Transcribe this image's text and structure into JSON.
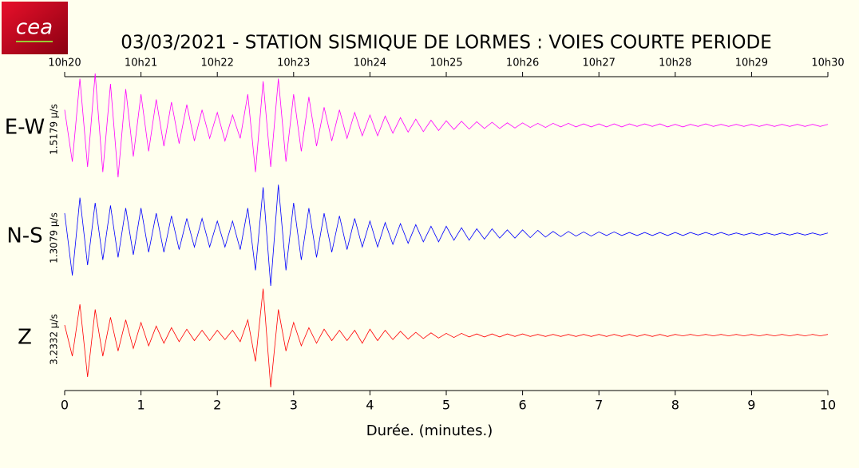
{
  "logo": {
    "text": "cea"
  },
  "chart_data": {
    "type": "line",
    "title": "03/03/2021  -  STATION SISMIQUE DE LORMES : VOIES COURTE PERIODE",
    "x_label": "Durée.  (minutes.)",
    "xlim": [
      0,
      10
    ],
    "xticks": [
      0,
      1,
      2,
      3,
      4,
      5,
      6,
      7,
      8,
      9,
      10
    ],
    "top_xticks": [
      {
        "value": 0,
        "label": "10h20"
      },
      {
        "value": 1,
        "label": "10h21"
      },
      {
        "value": 2,
        "label": "10h22"
      },
      {
        "value": 3,
        "label": "10h23"
      },
      {
        "value": 4,
        "label": "10h24"
      },
      {
        "value": 5,
        "label": "10h25"
      },
      {
        "value": 6,
        "label": "10h26"
      },
      {
        "value": 7,
        "label": "10h27"
      },
      {
        "value": 8,
        "label": "10h28"
      },
      {
        "value": 9,
        "label": "10h29"
      },
      {
        "value": 10,
        "label": "10h30"
      }
    ],
    "ylim": [
      -1,
      1
    ],
    "x": [
      0,
      0.1,
      0.2,
      0.3,
      0.4,
      0.5,
      0.6,
      0.7,
      0.8,
      0.9,
      1,
      1.1,
      1.2,
      1.3,
      1.4,
      1.5,
      1.6,
      1.7,
      1.8,
      1.9,
      2,
      2.1,
      2.2,
      2.3,
      2.4,
      2.5,
      2.6,
      2.7,
      2.8,
      2.9,
      3,
      3.1,
      3.2,
      3.3,
      3.4,
      3.5,
      3.6,
      3.7,
      3.8,
      3.9,
      4,
      4.1,
      4.2,
      4.3,
      4.4,
      4.5,
      4.6,
      4.7,
      4.8,
      4.9,
      5,
      5.1,
      5.2,
      5.3,
      5.4,
      5.5,
      5.6,
      5.7,
      5.8,
      5.9,
      6,
      6.1,
      6.2,
      6.3,
      6.4,
      6.5,
      6.6,
      6.7,
      6.8,
      6.9,
      7,
      7.1,
      7.2,
      7.3,
      7.4,
      7.5,
      7.6,
      7.7,
      7.8,
      7.9,
      8,
      8.1,
      8.2,
      8.3,
      8.4,
      8.5,
      8.6,
      8.7,
      8.8,
      8.9,
      9,
      9.1,
      9.2,
      9.3,
      9.4,
      9.5,
      9.6,
      9.7,
      9.8,
      9.9,
      10
    ],
    "series": [
      {
        "name": "E-W",
        "scale_label": "1.5179 µ/s",
        "color": "#ff00ff",
        "values": [
          0.3,
          -0.7,
          0.9,
          -0.8,
          1.0,
          -0.9,
          0.8,
          -1.0,
          0.7,
          -0.6,
          0.6,
          -0.5,
          0.5,
          -0.4,
          0.45,
          -0.35,
          0.4,
          -0.3,
          0.3,
          -0.25,
          0.25,
          -0.3,
          0.2,
          -0.25,
          0.6,
          -0.9,
          0.85,
          -0.8,
          0.9,
          -0.7,
          0.6,
          -0.5,
          0.55,
          -0.4,
          0.35,
          -0.3,
          0.3,
          -0.25,
          0.25,
          -0.2,
          0.2,
          -0.2,
          0.18,
          -0.15,
          0.15,
          -0.13,
          0.12,
          -0.12,
          0.1,
          -0.1,
          0.09,
          -0.08,
          0.08,
          -0.07,
          0.07,
          -0.06,
          0.06,
          -0.06,
          0.05,
          -0.05,
          0.05,
          -0.04,
          0.04,
          -0.04,
          0.04,
          -0.03,
          0.04,
          -0.03,
          0.03,
          -0.03,
          0.03,
          -0.03,
          0.03,
          -0.03,
          0.03,
          -0.02,
          0.03,
          -0.02,
          0.03,
          -0.03,
          0.02,
          -0.03,
          0.02,
          -0.02,
          0.03,
          -0.02,
          0.02,
          -0.02,
          0.02,
          -0.02,
          0.02,
          -0.02,
          0.02,
          -0.02,
          0.02,
          -0.02,
          0.02,
          -0.02,
          0.02,
          -0.02,
          0.02
        ]
      },
      {
        "name": "N-S",
        "scale_label": "1.3079 µ/s",
        "color": "#0000ff",
        "values": [
          0.4,
          -0.8,
          0.7,
          -0.6,
          0.6,
          -0.5,
          0.55,
          -0.45,
          0.5,
          -0.4,
          0.5,
          -0.35,
          0.4,
          -0.35,
          0.35,
          -0.3,
          0.3,
          -0.25,
          0.3,
          -0.25,
          0.25,
          -0.25,
          0.25,
          -0.3,
          0.5,
          -0.7,
          0.9,
          -1.0,
          0.95,
          -0.7,
          0.6,
          -0.5,
          0.5,
          -0.45,
          0.4,
          -0.35,
          0.35,
          -0.3,
          0.3,
          -0.25,
          0.25,
          -0.25,
          0.22,
          -0.2,
          0.2,
          -0.18,
          0.18,
          -0.15,
          0.15,
          -0.15,
          0.15,
          -0.12,
          0.12,
          -0.12,
          0.1,
          -0.1,
          0.1,
          -0.08,
          0.08,
          -0.08,
          0.08,
          -0.07,
          0.07,
          -0.06,
          0.05,
          -0.05,
          0.05,
          -0.04,
          0.04,
          -0.04,
          0.04,
          -0.03,
          0.04,
          -0.03,
          0.03,
          -0.03,
          0.03,
          -0.03,
          0.03,
          -0.03,
          0.03,
          -0.03,
          0.03,
          -0.02,
          0.03,
          -0.02,
          0.03,
          -0.02,
          0.02,
          -0.02,
          0.02,
          -0.02,
          0.02,
          -0.02,
          0.02,
          -0.02,
          0.02,
          -0.02,
          0.02,
          -0.02,
          0.02
        ]
      },
      {
        "name": "Z",
        "scale_label": "3.2332 µ/s",
        "color": "#ff0000",
        "values": [
          0.2,
          -0.4,
          0.6,
          -0.8,
          0.5,
          -0.4,
          0.35,
          -0.3,
          0.3,
          -0.25,
          0.25,
          -0.2,
          0.18,
          -0.15,
          0.15,
          -0.12,
          0.12,
          -0.1,
          0.1,
          -0.1,
          0.1,
          -0.08,
          0.1,
          -0.12,
          0.3,
          -0.5,
          0.9,
          -1.0,
          0.5,
          -0.3,
          0.25,
          -0.2,
          0.15,
          -0.15,
          0.12,
          -0.1,
          0.1,
          -0.1,
          0.1,
          -0.15,
          0.12,
          -0.1,
          0.1,
          -0.08,
          0.08,
          -0.07,
          0.06,
          -0.06,
          0.05,
          -0.05,
          0.04,
          -0.04,
          0.04,
          -0.03,
          0.03,
          -0.03,
          0.03,
          -0.03,
          0.03,
          -0.02,
          0.03,
          -0.02,
          0.02,
          -0.02,
          0.02,
          -0.02,
          0.02,
          -0.02,
          0.02,
          -0.02,
          0.02,
          -0.02,
          0.02,
          -0.02,
          0.02,
          -0.02,
          0.02,
          -0.02,
          0.02,
          -0.02,
          0.02,
          -0.01,
          0.02,
          -0.01,
          0.02,
          -0.01,
          0.02,
          -0.01,
          0.02,
          -0.01,
          0.02,
          -0.01,
          0.02,
          -0.01,
          0.02,
          -0.01,
          0.02,
          -0.01,
          0.02,
          -0.01,
          0.02
        ]
      }
    ]
  }
}
